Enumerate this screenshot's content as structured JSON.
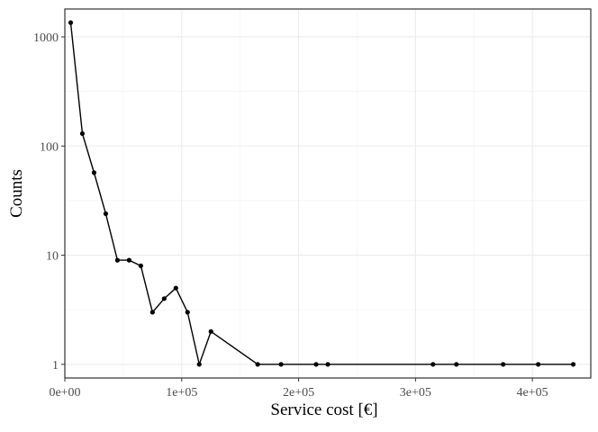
{
  "chart_data": {
    "type": "line",
    "title": "",
    "xlabel": "Service cost [€]",
    "ylabel": "Counts",
    "xlim": [
      0,
      450000
    ],
    "ylim": [
      0.75,
      1800
    ],
    "y_scale": "log10",
    "grid": true,
    "x_ticks": [
      {
        "value": 0,
        "label": "0e+00"
      },
      {
        "value": 100000,
        "label": "1e+05"
      },
      {
        "value": 200000,
        "label": "2e+05"
      },
      {
        "value": 300000,
        "label": "3e+05"
      },
      {
        "value": 400000,
        "label": "4e+05"
      }
    ],
    "y_ticks": [
      {
        "value": 1,
        "label": "1"
      },
      {
        "value": 10,
        "label": "10"
      },
      {
        "value": 100,
        "label": "100"
      },
      {
        "value": 1000,
        "label": "1000"
      }
    ],
    "series": [
      {
        "color": "#000000",
        "x": [
          5000,
          15000,
          25000,
          35000,
          45000,
          55000,
          65000,
          75000,
          85000,
          95000,
          105000,
          115000,
          125000,
          165000,
          185000,
          215000,
          225000,
          315000,
          335000,
          375000,
          405000,
          435000
        ],
        "y": [
          1350,
          130,
          57,
          24,
          9,
          9,
          8,
          3,
          4,
          5,
          3,
          1,
          2,
          1,
          1,
          1,
          1,
          1,
          1,
          1,
          1,
          1
        ]
      }
    ]
  }
}
